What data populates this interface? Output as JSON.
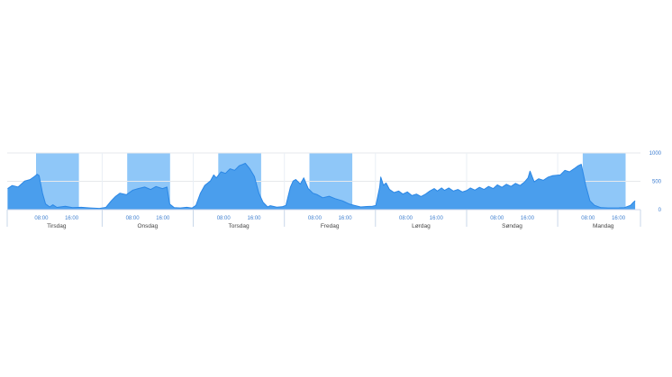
{
  "chart_data": {
    "type": "area",
    "title": "",
    "legend": false,
    "grid": true,
    "x_axis": {
      "unit": "hours_from_first_day_midnight",
      "range_hours": [
        -1,
        165.8
      ],
      "hours_per_day": 24,
      "days": [
        "Tirsdag",
        "Onsdag",
        "Torsdag",
        "Fredag",
        "Lørdag",
        "Søndag",
        "Mandag"
      ],
      "time_ticks": [
        {
          "hour": 8,
          "label": "08:00"
        },
        {
          "hour": 16,
          "label": "16:00"
        }
      ],
      "day_label_hour": 12
    },
    "y_axis": {
      "position": "right",
      "range": [
        0,
        1000
      ],
      "ticks": [
        {
          "value": 0,
          "label": "0"
        },
        {
          "value": 500,
          "label": "500"
        },
        {
          "value": 1000,
          "label": "1000"
        }
      ]
    },
    "highlight_bands": {
      "description": "daytime highlight band on weekdays",
      "day_indices": [
        0,
        1,
        2,
        3,
        6
      ],
      "start_hour": 6.6,
      "end_hour": 17.9
    },
    "series": [
      {
        "name": "series-1",
        "type": "area",
        "points": [
          [
            -0.9,
            370
          ],
          [
            0.3,
            425
          ],
          [
            1.9,
            400
          ],
          [
            3.6,
            505
          ],
          [
            5.0,
            530
          ],
          [
            6.2,
            585
          ],
          [
            6.9,
            625
          ],
          [
            7.4,
            600
          ],
          [
            8.3,
            290
          ],
          [
            9.1,
            100
          ],
          [
            10.2,
            48
          ],
          [
            11.0,
            85
          ],
          [
            12.1,
            40
          ],
          [
            14.3,
            60
          ],
          [
            16.2,
            35
          ],
          [
            18.5,
            42
          ],
          [
            20.9,
            30
          ],
          [
            23.3,
            22
          ],
          [
            25.0,
            40
          ],
          [
            26.4,
            156
          ],
          [
            27.6,
            237
          ],
          [
            28.7,
            290
          ],
          [
            30.4,
            263
          ],
          [
            32.1,
            344
          ],
          [
            33.5,
            371
          ],
          [
            35.2,
            398
          ],
          [
            36.8,
            355
          ],
          [
            38.2,
            408
          ],
          [
            39.9,
            371
          ],
          [
            41.1,
            398
          ],
          [
            41.8,
            100
          ],
          [
            43.0,
            35
          ],
          [
            44.6,
            30
          ],
          [
            46.3,
            42
          ],
          [
            47.7,
            28
          ],
          [
            48.7,
            75
          ],
          [
            49.9,
            290
          ],
          [
            51.0,
            425
          ],
          [
            52.5,
            505
          ],
          [
            53.4,
            613
          ],
          [
            54.1,
            560
          ],
          [
            55.3,
            666
          ],
          [
            56.5,
            640
          ],
          [
            57.7,
            721
          ],
          [
            58.9,
            694
          ],
          [
            60.1,
            774
          ],
          [
            61.2,
            801
          ],
          [
            61.7,
            817
          ],
          [
            62.9,
            721
          ],
          [
            64.1,
            585
          ],
          [
            65.3,
            290
          ],
          [
            66.4,
            129
          ],
          [
            67.6,
            48
          ],
          [
            68.3,
            70
          ],
          [
            70.0,
            45
          ],
          [
            71.4,
            50
          ],
          [
            72.4,
            75
          ],
          [
            73.6,
            398
          ],
          [
            74.3,
            505
          ],
          [
            75.0,
            532
          ],
          [
            76.2,
            452
          ],
          [
            77.1,
            560
          ],
          [
            78.3,
            371
          ],
          [
            79.5,
            290
          ],
          [
            80.7,
            263
          ],
          [
            82.1,
            210
          ],
          [
            83.8,
            237
          ],
          [
            85.4,
            194
          ],
          [
            87.3,
            156
          ],
          [
            89.0,
            102
          ],
          [
            90.4,
            76
          ],
          [
            92.1,
            48
          ],
          [
            93.7,
            55
          ],
          [
            95.2,
            60
          ],
          [
            96.1,
            75
          ],
          [
            96.6,
            230
          ],
          [
            97.1,
            400
          ],
          [
            97.4,
            575
          ],
          [
            98.1,
            430
          ],
          [
            98.8,
            470
          ],
          [
            99.7,
            356
          ],
          [
            100.9,
            302
          ],
          [
            102.1,
            329
          ],
          [
            103.2,
            275
          ],
          [
            104.4,
            313
          ],
          [
            105.6,
            248
          ],
          [
            106.8,
            275
          ],
          [
            108.0,
            232
          ],
          [
            109.2,
            275
          ],
          [
            110.3,
            329
          ],
          [
            111.5,
            372
          ],
          [
            112.3,
            329
          ],
          [
            113.4,
            383
          ],
          [
            114.2,
            340
          ],
          [
            115.3,
            383
          ],
          [
            116.5,
            329
          ],
          [
            117.7,
            356
          ],
          [
            118.9,
            313
          ],
          [
            120.1,
            340
          ],
          [
            121.0,
            383
          ],
          [
            122.2,
            345
          ],
          [
            123.4,
            394
          ],
          [
            124.6,
            356
          ],
          [
            125.8,
            410
          ],
          [
            127.0,
            372
          ],
          [
            128.1,
            437
          ],
          [
            129.3,
            394
          ],
          [
            130.5,
            448
          ],
          [
            131.7,
            410
          ],
          [
            132.9,
            464
          ],
          [
            134.1,
            426
          ],
          [
            135.3,
            491
          ],
          [
            136.2,
            560
          ],
          [
            136.7,
            680
          ],
          [
            137.8,
            491
          ],
          [
            139.0,
            545
          ],
          [
            140.2,
            518
          ],
          [
            141.4,
            572
          ],
          [
            142.6,
            599
          ],
          [
            144.7,
            613
          ],
          [
            145.9,
            694
          ],
          [
            147.1,
            666
          ],
          [
            148.3,
            721
          ],
          [
            149.4,
            774
          ],
          [
            150.2,
            800
          ],
          [
            151.4,
            425
          ],
          [
            152.5,
            156
          ],
          [
            153.7,
            76
          ],
          [
            155.4,
            35
          ],
          [
            157.3,
            30
          ],
          [
            160.1,
            32
          ],
          [
            161.6,
            37
          ],
          [
            163.2,
            76
          ],
          [
            163.9,
            129
          ],
          [
            164.4,
            156
          ]
        ]
      }
    ],
    "colors": {
      "background": "#ffffff",
      "area_fill": "#4a9eed",
      "area_line": "#2b87e5",
      "band": "#8fc7f8",
      "gridline": "#e7e9ec",
      "axis_line": "#ccd6eb",
      "day_separator": "#c9d7e9",
      "inner_day_separator": "#e9eff6",
      "time_label": "#4080d0",
      "day_label": "#454545",
      "y_label": "#3a7bd0"
    }
  }
}
